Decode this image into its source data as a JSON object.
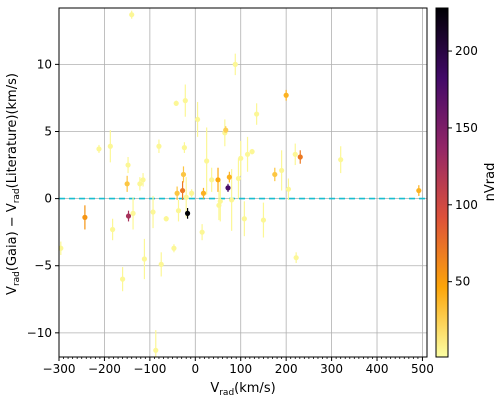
{
  "chart_data": {
    "type": "scatter",
    "xlabel": {
      "base": "V",
      "sub": "rad",
      "rest": "(km/s)"
    },
    "ylabel": {
      "p1": "V",
      "sub1": "rad",
      "p2": "(Gaia) − V",
      "sub2": "rad",
      "p3": "(Literature)(km/s)"
    },
    "xlim": [
      -300,
      510
    ],
    "ylim": [
      -11.8,
      14.2
    ],
    "x_ticks": [
      -300,
      -200,
      -100,
      0,
      100,
      200,
      300,
      400,
      500
    ],
    "x_tick_labels": [
      "−300",
      "−200",
      "−100",
      "0",
      "100",
      "200",
      "300",
      "400",
      "500"
    ],
    "y_ticks": [
      -10,
      -5,
      0,
      5,
      10
    ],
    "y_tick_labels": [
      "−10",
      "−5",
      "0",
      "5",
      "10"
    ],
    "grid": true,
    "reference_line": {
      "y": 0,
      "style": "dashed",
      "color": "#17becf"
    },
    "colorbar": {
      "label": "nVrad",
      "range": [
        1,
        228
      ],
      "ticks": [
        50,
        100,
        150,
        200
      ],
      "tick_labels": [
        "50",
        "100",
        "150",
        "200"
      ],
      "colormap": "inferno_r",
      "stops": [
        "#fcffa4",
        "#fca50a",
        "#dd513a",
        "#932667",
        "#420a68",
        "#000004"
      ]
    },
    "points": [
      {
        "x": -296,
        "y": -3.7,
        "err": 0.5,
        "c": 5
      },
      {
        "x": -243,
        "y": -1.4,
        "err": 0.9,
        "c": 55
      },
      {
        "x": -212,
        "y": 3.7,
        "err": 0.3,
        "c": 5
      },
      {
        "x": -187,
        "y": 3.9,
        "err": 1.2,
        "c": 5
      },
      {
        "x": -182,
        "y": -2.3,
        "err": 0.8,
        "c": 5
      },
      {
        "x": -160,
        "y": -6.0,
        "err": 0.9,
        "c": 5
      },
      {
        "x": -150,
        "y": 1.1,
        "err": 0.6,
        "c": 30
      },
      {
        "x": -148,
        "y": 2.5,
        "err": 0.6,
        "c": 5
      },
      {
        "x": -147,
        "y": -1.3,
        "err": 0.4,
        "c": 125
      },
      {
        "x": -140,
        "y": 13.7,
        "err": 0.3,
        "c": 5
      },
      {
        "x": -137,
        "y": -1.1,
        "err": 1.2,
        "c": 5
      },
      {
        "x": -122,
        "y": 1.1,
        "err": 0.5,
        "c": 5
      },
      {
        "x": -115,
        "y": 1.4,
        "err": 0.5,
        "c": 5
      },
      {
        "x": -112,
        "y": -4.5,
        "err": 1.5,
        "c": 5
      },
      {
        "x": -93,
        "y": -1.0,
        "err": 1.2,
        "c": 5
      },
      {
        "x": -87,
        "y": -11.3,
        "err": 1.5,
        "c": 5
      },
      {
        "x": -80,
        "y": 3.9,
        "err": 0.5,
        "c": 5
      },
      {
        "x": -75,
        "y": -4.9,
        "err": 0.9,
        "c": 5
      },
      {
        "x": -64,
        "y": -1.5,
        "err": 0.2,
        "c": 5
      },
      {
        "x": -47,
        "y": -3.7,
        "err": 0.3,
        "c": 5
      },
      {
        "x": -42,
        "y": 7.1,
        "err": 0.2,
        "c": 5
      },
      {
        "x": -40,
        "y": 0.4,
        "err": 0.5,
        "c": 30
      },
      {
        "x": -37,
        "y": -0.9,
        "err": 0.8,
        "c": 5
      },
      {
        "x": -28,
        "y": 0.6,
        "err": 0.7,
        "c": 70
      },
      {
        "x": -26,
        "y": 1.8,
        "err": 0.6,
        "c": 30
      },
      {
        "x": -24,
        "y": 3.8,
        "err": 0.4,
        "c": 5
      },
      {
        "x": -22,
        "y": 7.3,
        "err": 1.2,
        "c": 5
      },
      {
        "x": -20,
        "y": 0.1,
        "err": 1.5,
        "c": 5
      },
      {
        "x": -17,
        "y": -1.1,
        "err": 0.4,
        "c": 228
      },
      {
        "x": -8,
        "y": 0.4,
        "err": 0.3,
        "c": 5
      },
      {
        "x": 5,
        "y": 5.9,
        "err": 1.3,
        "c": 5
      },
      {
        "x": 15,
        "y": -2.5,
        "err": 0.6,
        "c": 5
      },
      {
        "x": 18,
        "y": 0.4,
        "err": 0.4,
        "c": 40
      },
      {
        "x": 25,
        "y": 2.8,
        "err": 2.5,
        "c": 5
      },
      {
        "x": 36,
        "y": 1.4,
        "err": 0.9,
        "c": 5
      },
      {
        "x": 50,
        "y": 1.4,
        "err": 0.9,
        "c": 45
      },
      {
        "x": 52,
        "y": -0.5,
        "err": 1.1,
        "c": 5
      },
      {
        "x": 55,
        "y": -0.2,
        "err": 1.5,
        "c": 5
      },
      {
        "x": 65,
        "y": 4.9,
        "err": 1.0,
        "c": 5
      },
      {
        "x": 67,
        "y": 5.1,
        "err": 0.3,
        "c": 25
      },
      {
        "x": 72,
        "y": 0.8,
        "err": 0.3,
        "c": 180
      },
      {
        "x": 75,
        "y": 1.6,
        "err": 0.4,
        "c": 40
      },
      {
        "x": 80,
        "y": -0.1,
        "err": 2.3,
        "c": 5
      },
      {
        "x": 88,
        "y": 10.0,
        "err": 0.8,
        "c": 5
      },
      {
        "x": 95,
        "y": 1.5,
        "err": 1.5,
        "c": 5
      },
      {
        "x": 100,
        "y": 3.0,
        "err": 1.3,
        "c": 5
      },
      {
        "x": 108,
        "y": -1.5,
        "err": 1.3,
        "c": 5
      },
      {
        "x": 115,
        "y": 3.3,
        "err": 1.3,
        "c": 5
      },
      {
        "x": 125,
        "y": 3.5,
        "err": 0.2,
        "c": 5
      },
      {
        "x": 135,
        "y": 6.3,
        "err": 0.8,
        "c": 5
      },
      {
        "x": 150,
        "y": -1.6,
        "err": 1.3,
        "c": 5
      },
      {
        "x": 175,
        "y": 1.8,
        "err": 0.5,
        "c": 30
      },
      {
        "x": 190,
        "y": 2.1,
        "err": 1.5,
        "c": 5
      },
      {
        "x": 200,
        "y": 7.7,
        "err": 0.4,
        "c": 40
      },
      {
        "x": 205,
        "y": 0.7,
        "err": 0.8,
        "c": 5
      },
      {
        "x": 220,
        "y": 3.3,
        "err": 0.8,
        "c": 5
      },
      {
        "x": 222,
        "y": -4.4,
        "err": 0.4,
        "c": 5
      },
      {
        "x": 231,
        "y": 3.1,
        "err": 0.5,
        "c": 70
      },
      {
        "x": 320,
        "y": 2.9,
        "err": 1.0,
        "c": 5
      },
      {
        "x": 492,
        "y": 0.6,
        "err": 0.4,
        "c": 40
      }
    ]
  }
}
